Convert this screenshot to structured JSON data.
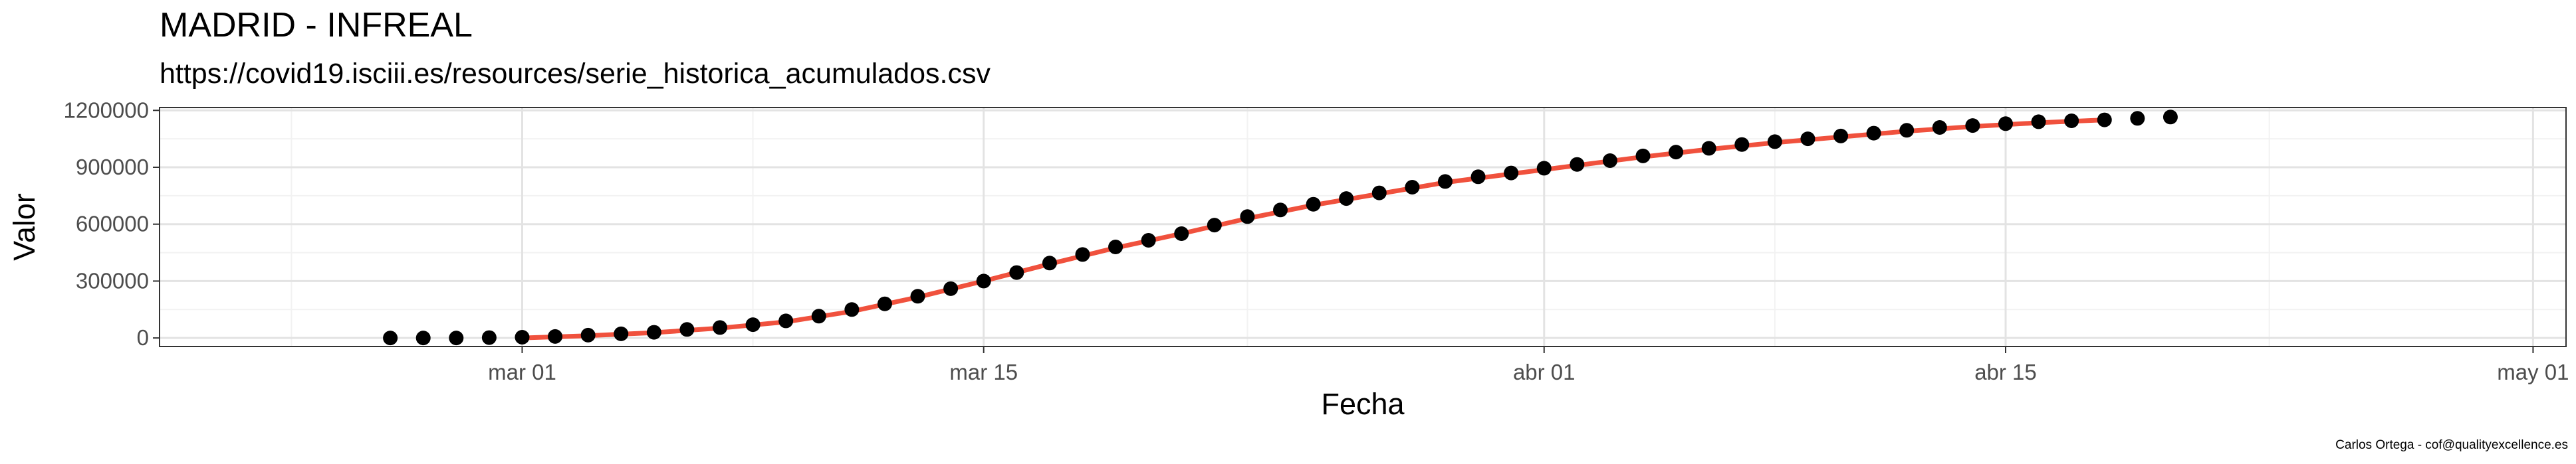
{
  "title": "MADRID - INFREAL",
  "subtitle": "https://covid19.isciii.es/resources/serie_historica_acumulados.csv",
  "caption": "Carlos Ortega - cof@qualityexcellence.es",
  "colors": {
    "points": "#000000",
    "fit_line": "#f0513d",
    "grid_major": "#e3e3e3",
    "grid_minor": "#f2f2f2",
    "panel_border": "#333333"
  },
  "chart_data": {
    "type": "scatter",
    "xlabel": "Fecha",
    "ylabel": "Valor",
    "x_tick_labels": [
      "mar 01",
      "mar 15",
      "abr 01",
      "abr 15",
      "may 01"
    ],
    "y_tick_labels": [
      "0",
      "300000",
      "600000",
      "900000",
      "1200000"
    ],
    "y_ticks": [
      0,
      300000,
      600000,
      900000,
      1200000
    ],
    "ylim": [
      -45000,
      1215000
    ],
    "xlim": [
      "2020-02-19",
      "2020-05-02"
    ],
    "grid": true,
    "legend": "none",
    "series": [
      {
        "values_type": "points",
        "x": [
          "2020-02-26",
          "2020-02-27",
          "2020-02-28",
          "2020-02-29",
          "2020-03-01",
          "2020-03-02",
          "2020-03-03",
          "2020-03-04",
          "2020-03-05",
          "2020-03-06",
          "2020-03-07",
          "2020-03-08",
          "2020-03-09",
          "2020-03-10",
          "2020-03-11",
          "2020-03-12",
          "2020-03-13",
          "2020-03-14",
          "2020-03-15",
          "2020-03-16",
          "2020-03-17",
          "2020-03-18",
          "2020-03-19",
          "2020-03-20",
          "2020-03-21",
          "2020-03-22",
          "2020-03-23",
          "2020-03-24",
          "2020-03-25",
          "2020-03-26",
          "2020-03-27",
          "2020-03-28",
          "2020-03-29",
          "2020-03-30",
          "2020-03-31",
          "2020-04-01",
          "2020-04-02",
          "2020-04-03",
          "2020-04-04",
          "2020-04-05",
          "2020-04-06",
          "2020-04-07",
          "2020-04-08",
          "2020-04-09",
          "2020-04-10",
          "2020-04-11",
          "2020-04-12",
          "2020-04-13",
          "2020-04-14",
          "2020-04-15",
          "2020-04-16",
          "2020-04-17",
          "2020-04-18",
          "2020-04-19",
          "2020-04-20"
        ],
        "y": [
          0,
          0,
          0,
          2000,
          4000,
          8000,
          15000,
          22000,
          30000,
          45000,
          55000,
          70000,
          90000,
          115000,
          150000,
          180000,
          220000,
          260000,
          300000,
          345000,
          395000,
          440000,
          480000,
          515000,
          550000,
          595000,
          640000,
          675000,
          705000,
          735000,
          765000,
          795000,
          825000,
          850000,
          870000,
          895000,
          915000,
          935000,
          960000,
          980000,
          1000000,
          1020000,
          1035000,
          1050000,
          1065000,
          1080000,
          1095000,
          1110000,
          1120000,
          1130000,
          1140000,
          1145000,
          1150000,
          1158000,
          1165000
        ]
      },
      {
        "values_type": "fit_line",
        "x": [
          "2020-03-01",
          "2020-03-03",
          "2020-03-05",
          "2020-03-07",
          "2020-03-09",
          "2020-03-11",
          "2020-03-13",
          "2020-03-15",
          "2020-03-17",
          "2020-03-19",
          "2020-03-21",
          "2020-03-23",
          "2020-03-25",
          "2020-03-27",
          "2020-03-29",
          "2020-03-31",
          "2020-04-02",
          "2020-04-04",
          "2020-04-06",
          "2020-04-08",
          "2020-04-10",
          "2020-04-12",
          "2020-04-14",
          "2020-04-16",
          "2020-04-18"
        ],
        "y": [
          0,
          12000,
          28000,
          52000,
          85000,
          140000,
          215000,
          300000,
          390000,
          475000,
          550000,
          630000,
          700000,
          760000,
          820000,
          865000,
          910000,
          955000,
          995000,
          1030000,
          1060000,
          1090000,
          1115000,
          1135000,
          1150000
        ]
      }
    ]
  }
}
